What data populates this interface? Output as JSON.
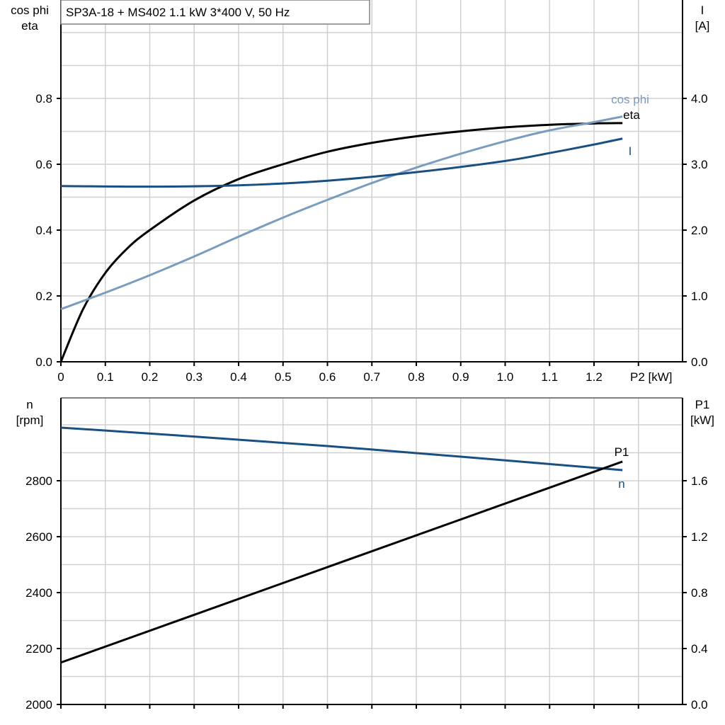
{
  "chart_data": [
    {
      "type": "line",
      "title": "SP3A-18 + MS402   1.1 kW   3*400 V, 50 Hz",
      "xlabel": "P2 [kW]",
      "ylabel_left": [
        "cos phi",
        "eta"
      ],
      "ylabel_right": [
        "I",
        "[A]"
      ],
      "xlim": [
        0,
        1.4
      ],
      "ylim_left": [
        0,
        1.1
      ],
      "ylim_right": [
        0,
        5.5
      ],
      "x_ticks": [
        "0",
        "0.1",
        "0.2",
        "0.3",
        "0.4",
        "0.5",
        "0.6",
        "0.7",
        "0.8",
        "0.9",
        "1.0",
        "1.1",
        "1.2"
      ],
      "y_ticks_left": [
        "0.0",
        "0.2",
        "0.4",
        "0.6",
        "0.8"
      ],
      "y_ticks_right": [
        "0.0",
        "1.0",
        "2.0",
        "3.0",
        "4.0"
      ],
      "grid": true,
      "series": [
        {
          "name": "eta",
          "axis": "left",
          "color": "#000000",
          "x": [
            0,
            0.05,
            0.1,
            0.15,
            0.2,
            0.3,
            0.4,
            0.5,
            0.6,
            0.7,
            0.8,
            0.9,
            1.0,
            1.1,
            1.2,
            1.264
          ],
          "y": [
            0,
            0.16,
            0.27,
            0.345,
            0.4,
            0.49,
            0.555,
            0.6,
            0.638,
            0.665,
            0.685,
            0.7,
            0.712,
            0.72,
            0.724,
            0.725
          ]
        },
        {
          "name": "cos phi",
          "axis": "left",
          "color": "#7a9cbf",
          "x": [
            0,
            0.1,
            0.2,
            0.3,
            0.4,
            0.5,
            0.6,
            0.7,
            0.8,
            0.9,
            1.0,
            1.1,
            1.2,
            1.264
          ],
          "y": [
            0.16,
            0.21,
            0.263,
            0.32,
            0.38,
            0.438,
            0.492,
            0.543,
            0.59,
            0.632,
            0.67,
            0.703,
            0.728,
            0.745
          ]
        },
        {
          "name": "I",
          "axis": "right",
          "color": "#1a4f82",
          "x": [
            0,
            0.2,
            0.4,
            0.6,
            0.8,
            1.0,
            1.1,
            1.2,
            1.264
          ],
          "y": [
            2.67,
            2.66,
            2.68,
            2.75,
            2.88,
            3.05,
            3.17,
            3.3,
            3.39
          ]
        }
      ]
    },
    {
      "type": "line",
      "xlim": [
        0,
        1.4
      ],
      "ylabel_left": [
        "n",
        "[rpm]"
      ],
      "ylabel_right": [
        "P1",
        "[kW]"
      ],
      "ylim_left": [
        2000,
        3000
      ],
      "ylim_right": [
        0,
        2.0
      ],
      "y_ticks_left": [
        "2000",
        "2200",
        "2400",
        "2600",
        "2800"
      ],
      "y_ticks_right": [
        "0.0",
        "0.4",
        "0.8",
        "1.2",
        "1.6"
      ],
      "grid": true,
      "series": [
        {
          "name": "n",
          "axis": "left",
          "color": "#1a4f82",
          "x": [
            0,
            0.3,
            0.6,
            0.9,
            1.264
          ],
          "y": [
            2990,
            2958,
            2924,
            2886,
            2838
          ]
        },
        {
          "name": "P1",
          "axis": "right",
          "color": "#000000",
          "x": [
            0,
            1.264
          ],
          "y": [
            0.3,
            1.737
          ]
        }
      ]
    }
  ]
}
